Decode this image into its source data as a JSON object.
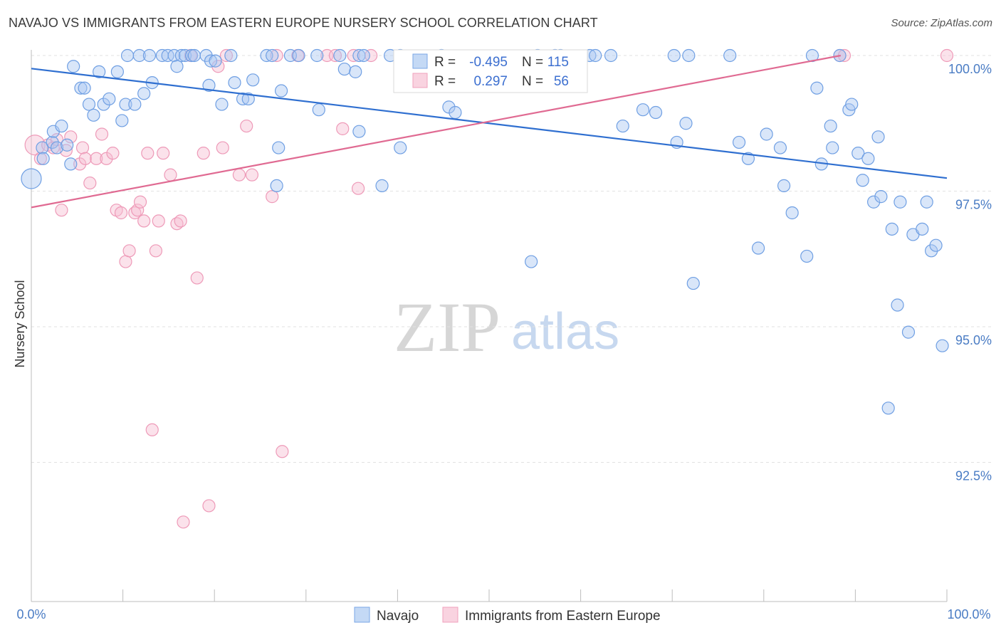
{
  "title": "NAVAJO VS IMMIGRANTS FROM EASTERN EUROPE NURSERY SCHOOL CORRELATION CHART",
  "source": "Source: ZipAtlas.com",
  "watermark": {
    "zip": "ZIP",
    "atlas": "atlas"
  },
  "colors": {
    "navajo": "#7aa6e6",
    "navajo_line": "#2f6fd0",
    "immigrants": "#f0a0bc",
    "immigrants_line": "#e06a92",
    "tick": "#4a7cc4"
  },
  "legend": {
    "navajo": {
      "r_label": "R =",
      "r_value": "-0.495",
      "n_label": "N =",
      "n_value": "115"
    },
    "immigrants": {
      "r_label": "R =",
      "r_value": "0.297",
      "n_label": "N =",
      "n_value": "56"
    }
  },
  "chart_data": {
    "type": "scatter",
    "title": "NAVAJO VS IMMIGRANTS FROM EASTERN EUROPE NURSERY SCHOOL CORRELATION CHART",
    "xlabel": "",
    "ylabel": "Nursery School",
    "xlim": [
      0,
      100
    ],
    "ylim": [
      90.0,
      100.3
    ],
    "x_tick_labels": [
      "0.0%",
      "100.0%"
    ],
    "y_ticks": [
      100.0,
      97.5,
      95.0,
      92.5
    ],
    "y_tick_labels": [
      "100.0%",
      "97.5%",
      "95.0%",
      "92.5%"
    ],
    "bottom_legend": [
      "Navajo",
      "Immigrants from Eastern Europe"
    ],
    "series": [
      {
        "name": "Navajo",
        "r": -0.495,
        "n": 115,
        "trend": {
          "x0": 0,
          "y0": 99.76,
          "x1": 100,
          "y1": 97.74
        },
        "points": [
          [
            0,
            97.73
          ],
          [
            1.2,
            98.3
          ],
          [
            1.3,
            98.1
          ],
          [
            2.3,
            98.4
          ],
          [
            2.4,
            98.6
          ],
          [
            2.8,
            98.3
          ],
          [
            3.3,
            98.7
          ],
          [
            3.9,
            98.35
          ],
          [
            4.3,
            98.0
          ],
          [
            4.6,
            99.8
          ],
          [
            5.4,
            99.4
          ],
          [
            5.8,
            99.4
          ],
          [
            6.3,
            99.1
          ],
          [
            6.8,
            98.9
          ],
          [
            7.4,
            99.7
          ],
          [
            7.9,
            99.1
          ],
          [
            8.5,
            99.2
          ],
          [
            9.4,
            99.7
          ],
          [
            9.9,
            98.8
          ],
          [
            10.3,
            99.1
          ],
          [
            10.5,
            100.0
          ],
          [
            11.3,
            99.1
          ],
          [
            11.8,
            100.0
          ],
          [
            12.3,
            99.3
          ],
          [
            12.9,
            100.0
          ],
          [
            13.2,
            99.5
          ],
          [
            14.3,
            100.0
          ],
          [
            14.9,
            100.0
          ],
          [
            15.6,
            100.0
          ],
          [
            15.9,
            99.8
          ],
          [
            16.4,
            100.0
          ],
          [
            16.8,
            100.0
          ],
          [
            17.5,
            100.0
          ],
          [
            17.8,
            100.0
          ],
          [
            19.1,
            100.0
          ],
          [
            19.4,
            99.45
          ],
          [
            19.6,
            99.9
          ],
          [
            20.1,
            99.9
          ],
          [
            20.8,
            99.1
          ],
          [
            21.8,
            100.0
          ],
          [
            22.2,
            99.5
          ],
          [
            23.1,
            99.2
          ],
          [
            23.7,
            99.2
          ],
          [
            24.2,
            99.55
          ],
          [
            25.7,
            100.0
          ],
          [
            26.3,
            100.0
          ],
          [
            26.8,
            97.6
          ],
          [
            27.0,
            98.3
          ],
          [
            27.3,
            99.35
          ],
          [
            28.3,
            100.0
          ],
          [
            29.2,
            100.0
          ],
          [
            31.2,
            100.0
          ],
          [
            31.4,
            99.0
          ],
          [
            33.7,
            100.0
          ],
          [
            34.2,
            99.75
          ],
          [
            35.4,
            99.7
          ],
          [
            35.8,
            100.0
          ],
          [
            36.3,
            100.0
          ],
          [
            35.8,
            98.6
          ],
          [
            38.3,
            97.6
          ],
          [
            39.2,
            100.0
          ],
          [
            40.3,
            100.0
          ],
          [
            40.3,
            98.3
          ],
          [
            44.8,
            100.0
          ],
          [
            45.6,
            99.05
          ],
          [
            46.3,
            98.95
          ],
          [
            54.6,
            96.2
          ],
          [
            55.3,
            100.0
          ],
          [
            57.2,
            100.0
          ],
          [
            57.8,
            100.0
          ],
          [
            61.0,
            100.0
          ],
          [
            61.6,
            100.0
          ],
          [
            63.3,
            100.0
          ],
          [
            64.6,
            98.7
          ],
          [
            66.8,
            99.0
          ],
          [
            68.2,
            98.95
          ],
          [
            70.2,
            100.0
          ],
          [
            70.5,
            98.4
          ],
          [
            71.5,
            98.75
          ],
          [
            71.8,
            100.0
          ],
          [
            72.3,
            95.8
          ],
          [
            76.3,
            100.0
          ],
          [
            77.3,
            98.4
          ],
          [
            78.3,
            98.1
          ],
          [
            79.4,
            96.45
          ],
          [
            80.3,
            98.55
          ],
          [
            81.8,
            98.3
          ],
          [
            82.2,
            97.6
          ],
          [
            83.1,
            97.1
          ],
          [
            84.7,
            96.3
          ],
          [
            85.3,
            100.0
          ],
          [
            85.8,
            99.4
          ],
          [
            86.3,
            98.0
          ],
          [
            87.3,
            98.7
          ],
          [
            87.5,
            98.3
          ],
          [
            88.3,
            100.0
          ],
          [
            89.3,
            99.0
          ],
          [
            89.6,
            99.1
          ],
          [
            90.3,
            98.2
          ],
          [
            90.8,
            97.7
          ],
          [
            91.4,
            98.1
          ],
          [
            92.0,
            97.3
          ],
          [
            92.5,
            98.5
          ],
          [
            92.8,
            97.4
          ],
          [
            93.6,
            93.5
          ],
          [
            94.0,
            96.8
          ],
          [
            94.6,
            95.4
          ],
          [
            94.9,
            97.3
          ],
          [
            95.8,
            94.9
          ],
          [
            96.3,
            96.7
          ],
          [
            97.3,
            96.8
          ],
          [
            97.8,
            97.3
          ],
          [
            98.3,
            96.4
          ],
          [
            98.8,
            96.5
          ],
          [
            99.5,
            94.65
          ]
        ]
      },
      {
        "name": "Immigrants from Eastern Europe",
        "r": 0.297,
        "n": 56,
        "trend": {
          "x0": 0,
          "y0": 97.2,
          "x1": 88.4,
          "y1": 100.0
        },
        "points": [
          [
            0.4,
            98.35
          ],
          [
            1.0,
            98.1
          ],
          [
            1.8,
            98.35
          ],
          [
            2.4,
            98.3
          ],
          [
            2.8,
            98.45
          ],
          [
            3.3,
            97.15
          ],
          [
            3.8,
            98.25
          ],
          [
            4.3,
            98.5
          ],
          [
            5.3,
            98.0
          ],
          [
            5.6,
            98.3
          ],
          [
            5.9,
            98.1
          ],
          [
            6.4,
            97.65
          ],
          [
            7.1,
            98.1
          ],
          [
            7.7,
            98.55
          ],
          [
            8.2,
            98.1
          ],
          [
            8.9,
            98.2
          ],
          [
            9.3,
            97.15
          ],
          [
            9.8,
            97.1
          ],
          [
            10.3,
            96.2
          ],
          [
            10.7,
            96.4
          ],
          [
            11.3,
            97.1
          ],
          [
            11.6,
            97.15
          ],
          [
            11.9,
            97.3
          ],
          [
            12.3,
            96.95
          ],
          [
            12.7,
            98.2
          ],
          [
            13.2,
            93.1
          ],
          [
            13.6,
            96.4
          ],
          [
            13.9,
            96.95
          ],
          [
            14.4,
            98.2
          ],
          [
            15.2,
            97.8
          ],
          [
            15.9,
            96.9
          ],
          [
            16.3,
            96.95
          ],
          [
            16.6,
            91.4
          ],
          [
            17.4,
            100.0
          ],
          [
            18.1,
            95.9
          ],
          [
            18.8,
            98.2
          ],
          [
            19.4,
            91.7
          ],
          [
            20.4,
            99.8
          ],
          [
            20.9,
            98.3
          ],
          [
            21.3,
            100.0
          ],
          [
            22.7,
            97.8
          ],
          [
            23.5,
            98.7
          ],
          [
            24.1,
            97.8
          ],
          [
            26.3,
            97.4
          ],
          [
            26.8,
            100.0
          ],
          [
            27.4,
            92.7
          ],
          [
            29.1,
            100.0
          ],
          [
            32.3,
            100.0
          ],
          [
            33.2,
            100.0
          ],
          [
            34.0,
            98.65
          ],
          [
            35.2,
            100.0
          ],
          [
            35.7,
            97.55
          ],
          [
            37.1,
            100.0
          ],
          [
            88.3,
            100.0
          ],
          [
            88.8,
            100.0
          ],
          [
            100.0,
            100.0
          ]
        ]
      }
    ]
  }
}
